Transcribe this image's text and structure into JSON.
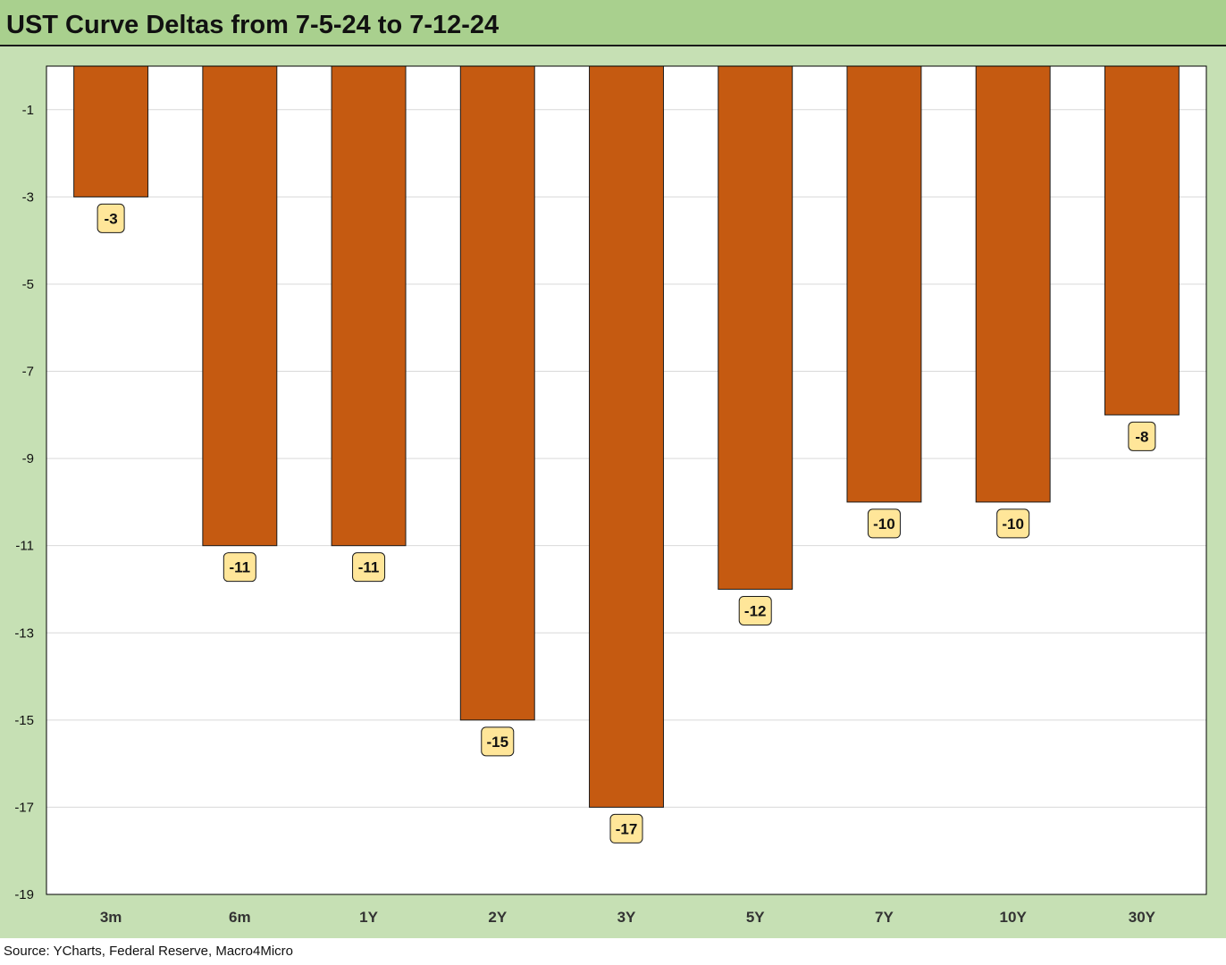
{
  "title": "UST Curve Deltas from 7-5-24 to 7-12-24",
  "source": "Source: YCharts, Federal Reserve, Macro4Micro",
  "colors": {
    "bar": "#c55a11",
    "label_bg": "#ffe699",
    "plot_bg": "#ffffff",
    "frame_bg": "#c6e0b4",
    "title_bg": "#a9d08e"
  },
  "chart_data": {
    "type": "bar",
    "categories": [
      "3m",
      "6m",
      "1Y",
      "2Y",
      "3Y",
      "5Y",
      "7Y",
      "10Y",
      "30Y"
    ],
    "values": [
      -3,
      -11,
      -11,
      -15,
      -17,
      -12,
      -10,
      -10,
      -8
    ],
    "data_labels": [
      "-3",
      "-11",
      "-11",
      "-15",
      "-17",
      "-12",
      "-10",
      "-10",
      "-8"
    ],
    "yticks": [
      -1,
      -3,
      -5,
      -7,
      -9,
      -11,
      -13,
      -15,
      -17,
      -19
    ],
    "ylim": [
      -19,
      0
    ],
    "grid": true,
    "legend": "none"
  }
}
